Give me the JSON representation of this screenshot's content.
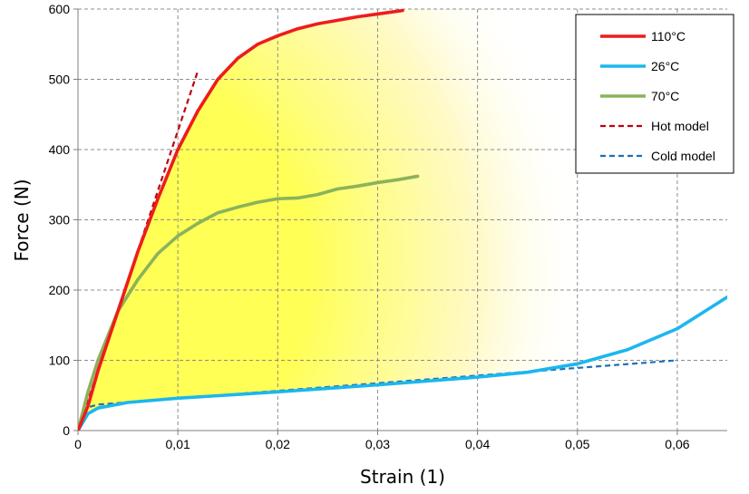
{
  "chart_data": {
    "type": "line",
    "xlabel": "Strain (1)",
    "ylabel": "Force (N)",
    "xlim": [
      0,
      0.065
    ],
    "ylim": [
      0,
      600
    ],
    "x_ticks": [
      0,
      0.01,
      0.02,
      0.03,
      0.04,
      0.05,
      0.06
    ],
    "x_tick_labels": [
      "0",
      "0,01",
      "0,02",
      "0,03",
      "0,04",
      "0,05",
      "0,06"
    ],
    "y_ticks": [
      0,
      100,
      200,
      300,
      400,
      500,
      600
    ],
    "y_tick_labels": [
      "0",
      "100",
      "200",
      "300",
      "400",
      "500",
      "600"
    ],
    "grid": true,
    "legend_position": "top-right",
    "highlight_region": {
      "color": "#FFFF66",
      "description": "shaded area between cold and hot curves"
    },
    "series": [
      {
        "name": "110°C",
        "color": "#EE1C1C",
        "style": "solid",
        "x": [
          0,
          0.001,
          0.002,
          0.004,
          0.006,
          0.008,
          0.01,
          0.012,
          0.014,
          0.016,
          0.018,
          0.02,
          0.022,
          0.024,
          0.026,
          0.028,
          0.03,
          0.0325
        ],
        "y": [
          0,
          35,
          85,
          170,
          255,
          330,
          400,
          455,
          500,
          530,
          550,
          562,
          572,
          579,
          584,
          589,
          593,
          598
        ]
      },
      {
        "name": "26°C",
        "color": "#1CB6EE",
        "style": "solid",
        "x": [
          0,
          0.001,
          0.002,
          0.005,
          0.01,
          0.02,
          0.03,
          0.04,
          0.045,
          0.05,
          0.055,
          0.06,
          0.065
        ],
        "y": [
          0,
          24,
          32,
          40,
          46,
          55,
          65,
          76,
          83,
          95,
          115,
          145,
          190
        ]
      },
      {
        "name": "70°C",
        "color": "#8BB35A",
        "style": "solid",
        "x": [
          0,
          0.001,
          0.002,
          0.004,
          0.006,
          0.008,
          0.01,
          0.012,
          0.014,
          0.016,
          0.018,
          0.02,
          0.022,
          0.024,
          0.026,
          0.028,
          0.03,
          0.032,
          0.034
        ],
        "y": [
          0,
          55,
          100,
          170,
          215,
          252,
          277,
          295,
          310,
          318,
          325,
          330,
          331,
          336,
          344,
          348,
          353,
          357,
          362
        ]
      },
      {
        "name": "Hot model",
        "color": "#C0000B",
        "style": "dashed",
        "x": [
          0,
          0.012
        ],
        "y": [
          0,
          512
        ]
      },
      {
        "name": "Cold model",
        "color": "#1F6FB5",
        "style": "dashed",
        "x": [
          0,
          0.001,
          0.002,
          0.06
        ],
        "y": [
          0,
          33,
          37,
          100
        ]
      }
    ]
  }
}
